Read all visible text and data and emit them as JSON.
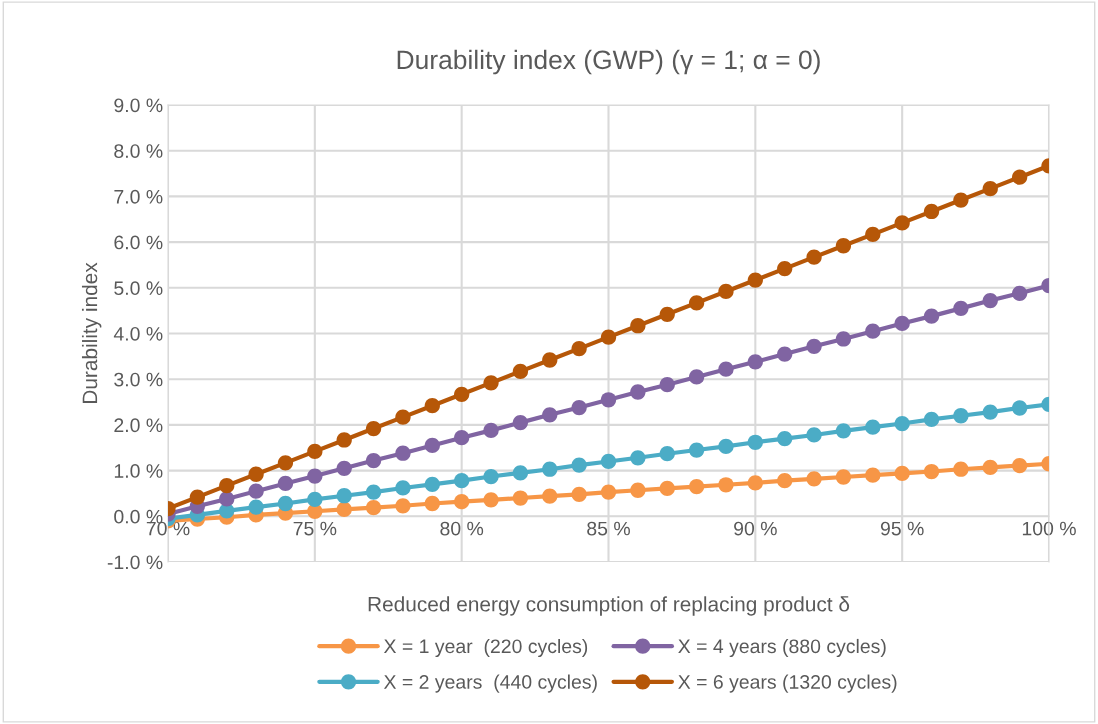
{
  "chart_data": {
    "type": "line",
    "title": "Durability index (GWP) (γ = 1; α = 0)",
    "xlabel": "Reduced energy consumption of replacing product δ",
    "ylabel": "Durability index",
    "x": [
      70,
      71,
      72,
      73,
      74,
      75,
      76,
      77,
      78,
      79,
      80,
      81,
      82,
      83,
      84,
      85,
      86,
      87,
      88,
      89,
      90,
      91,
      92,
      93,
      94,
      95,
      96,
      97,
      98,
      99,
      100
    ],
    "series": [
      {
        "name": "X = 1 year  (220 cycles)",
        "color": "#f79646",
        "values": [
          -0.1,
          -0.06,
          -0.02,
          0.03,
          0.07,
          0.11,
          0.15,
          0.19,
          0.23,
          0.28,
          0.32,
          0.36,
          0.4,
          0.44,
          0.48,
          0.53,
          0.57,
          0.61,
          0.65,
          0.69,
          0.73,
          0.78,
          0.82,
          0.86,
          0.9,
          0.94,
          0.98,
          1.03,
          1.07,
          1.11,
          1.15
        ]
      },
      {
        "name": "X = 2 years  (440 cycles)",
        "color": "#4bacc6",
        "values": [
          -0.05,
          0.03,
          0.12,
          0.2,
          0.28,
          0.37,
          0.45,
          0.53,
          0.62,
          0.7,
          0.78,
          0.87,
          0.95,
          1.03,
          1.12,
          1.2,
          1.28,
          1.37,
          1.45,
          1.53,
          1.62,
          1.7,
          1.78,
          1.87,
          1.95,
          2.03,
          2.12,
          2.2,
          2.28,
          2.37,
          2.45
        ]
      },
      {
        "name": "X = 4 years (880 cycles)",
        "color": "#8064a2",
        "values": [
          0.05,
          0.22,
          0.38,
          0.55,
          0.72,
          0.88,
          1.05,
          1.22,
          1.38,
          1.55,
          1.72,
          1.88,
          2.05,
          2.22,
          2.38,
          2.55,
          2.72,
          2.88,
          3.05,
          3.22,
          3.38,
          3.55,
          3.72,
          3.88,
          4.05,
          4.22,
          4.38,
          4.55,
          4.72,
          4.88,
          5.05
        ]
      },
      {
        "name": "X = 6 years (1320 cycles)",
        "color": "#b65708",
        "values": [
          0.17,
          0.42,
          0.67,
          0.92,
          1.17,
          1.42,
          1.67,
          1.92,
          2.17,
          2.42,
          2.67,
          2.92,
          3.17,
          3.42,
          3.67,
          3.92,
          4.17,
          4.42,
          4.67,
          4.92,
          5.17,
          5.42,
          5.67,
          5.92,
          6.17,
          6.42,
          6.67,
          6.92,
          7.17,
          7.42,
          7.67
        ]
      }
    ],
    "xlim": [
      70,
      100
    ],
    "xticks": [
      {
        "value": 70,
        "label": "70 %"
      },
      {
        "value": 75,
        "label": "75 %"
      },
      {
        "value": 80,
        "label": "80 %"
      },
      {
        "value": 85,
        "label": "85 %"
      },
      {
        "value": 90,
        "label": "90 %"
      },
      {
        "value": 95,
        "label": "95 %"
      },
      {
        "value": 100,
        "label": "100 %"
      }
    ],
    "ylim": [
      -1,
      9
    ],
    "yticks": [
      {
        "value": -1,
        "label": "-1.0 %"
      },
      {
        "value": 0,
        "label": "0.0 %"
      },
      {
        "value": 1,
        "label": "1.0 %"
      },
      {
        "value": 2,
        "label": "2.0 %"
      },
      {
        "value": 3,
        "label": "3.0 %"
      },
      {
        "value": 4,
        "label": "4.0 %"
      },
      {
        "value": 5,
        "label": "5.0 %"
      },
      {
        "value": 6,
        "label": "6.0 %"
      },
      {
        "value": 7,
        "label": "7.0 %"
      },
      {
        "value": 8,
        "label": "8.0 %"
      },
      {
        "value": 9,
        "label": "9.0 %"
      }
    ],
    "grid": true,
    "legend": "bottom",
    "marker": "circle",
    "line_style": "solid"
  }
}
